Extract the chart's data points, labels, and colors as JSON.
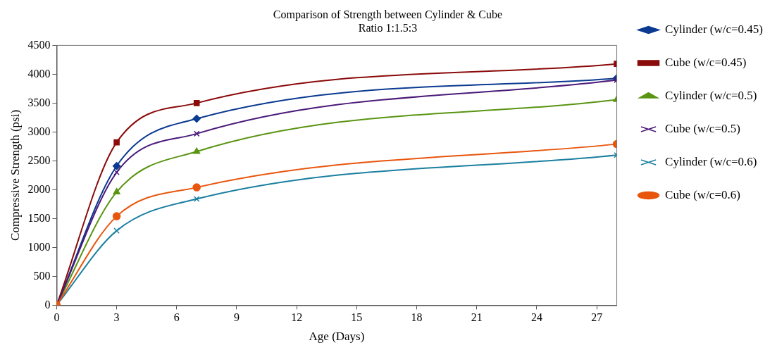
{
  "chart_data": {
    "type": "line",
    "title": "Comparison of Strength between Cylinder & Cube",
    "subtitle": "Ratio 1:1.5:3",
    "xlabel": "Age (Days)",
    "ylabel": "Compressive Strength (psi)",
    "x": [
      0,
      3,
      7,
      28
    ],
    "series": [
      {
        "name": "Cylinder (w/c=0.45)",
        "color": "#0b3a91",
        "marker": "diamond",
        "values": [
          0,
          2410,
          3230,
          3930
        ]
      },
      {
        "name": "Cube (w/c=0.45)",
        "color": "#8b0a0a",
        "marker": "square",
        "values": [
          0,
          2820,
          3500,
          4180
        ]
      },
      {
        "name": "Cylinder (w/c=0.5)",
        "color": "#5a9413",
        "marker": "triangle",
        "values": [
          0,
          1960,
          2660,
          3560
        ]
      },
      {
        "name": "Cube (w/c=0.5)",
        "color": "#4a1a7a",
        "marker": "cross",
        "values": [
          0,
          2300,
          2970,
          3900
        ]
      },
      {
        "name": "Cylinder (w/c=0.6)",
        "color": "#1a7fa0",
        "marker": "cross",
        "values": [
          0,
          1290,
          1840,
          2600
        ]
      },
      {
        "name": "Cube (w/c=0.6)",
        "color": "#e8560e",
        "marker": "circle",
        "values": [
          0,
          1540,
          2040,
          2790
        ]
      }
    ],
    "xlim": [
      0,
      28
    ],
    "xticks": [
      0,
      3,
      6,
      9,
      12,
      15,
      18,
      21,
      24,
      27
    ],
    "ylim": [
      0,
      4500
    ],
    "yticks": [
      0,
      500,
      1000,
      1500,
      2000,
      2500,
      3000,
      3500,
      4000,
      4500
    ],
    "grid": false,
    "legend": "right",
    "line_style": "solid"
  }
}
